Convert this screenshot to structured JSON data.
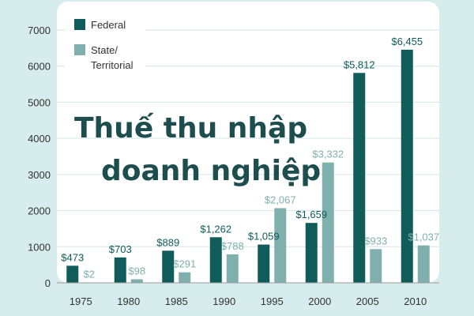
{
  "overlay": {
    "line1": "Thuế thu nhập",
    "line2": "doanh nghiệp"
  },
  "colors": {
    "federal": "#0f5c5a",
    "state": "#7fb0ae",
    "plot_bg": "#ffffff",
    "grid": "#d3e6e6",
    "page_bg": "#d7ecec"
  },
  "chart_data": {
    "type": "bar",
    "categories": [
      "1975",
      "1980",
      "1985",
      "1990",
      "1995",
      "2000",
      "2005",
      "2010"
    ],
    "series": [
      {
        "name": "Federal",
        "values": [
          473,
          703,
          889,
          1262,
          1059,
          1659,
          5812,
          6455
        ],
        "labels": [
          "$473",
          "$703",
          "$889",
          "$1,262",
          "$1,059",
          "$1,659",
          "$5,812",
          "$6,455"
        ]
      },
      {
        "name": "State/ Territorial",
        "name_lines": [
          "State/",
          "Territorial"
        ],
        "values": [
          2,
          98,
          291,
          788,
          2067,
          3332,
          933,
          1037
        ],
        "labels": [
          "$2",
          "$98",
          "$291",
          "$788",
          "$2,067",
          "$3,332",
          "$933",
          "$1,037"
        ]
      }
    ],
    "y_ticks": [
      0,
      1000,
      2000,
      3000,
      4000,
      5000,
      6000,
      7000
    ],
    "ylim": [
      0,
      7000
    ],
    "grid": true,
    "legend_position": "top-left"
  }
}
